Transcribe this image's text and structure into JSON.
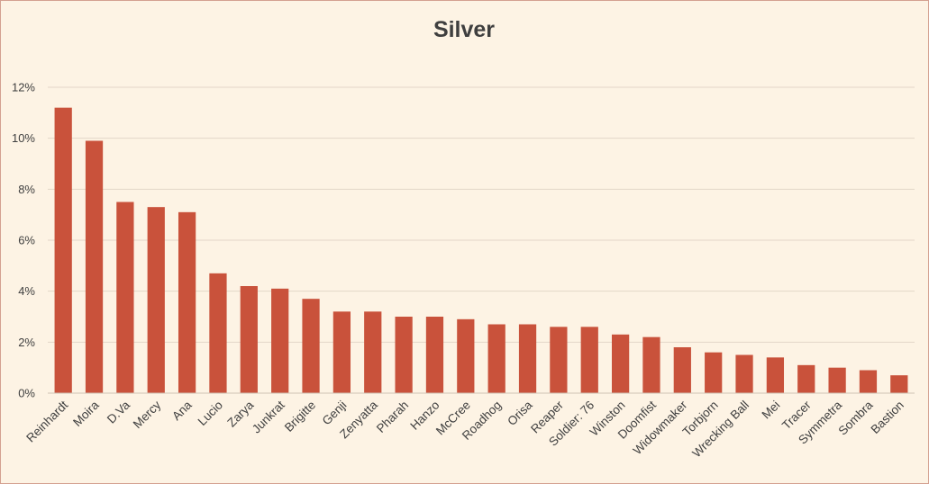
{
  "chart_data": {
    "type": "bar",
    "title": "Silver",
    "xlabel": "",
    "ylabel": "",
    "categories": [
      "Reinhardt",
      "Moira",
      "D.Va",
      "Mercy",
      "Ana",
      "Lucio",
      "Zarya",
      "Junkrat",
      "Brigitte",
      "Genji",
      "Zenyatta",
      "Pharah",
      "Hanzo",
      "McCree",
      "Roadhog",
      "Orisa",
      "Reaper",
      "Soldier: 76",
      "Winston",
      "Doomfist",
      "Widowmaker",
      "Torbjorn",
      "Wrecking Ball",
      "Mei",
      "Tracer",
      "Symmetra",
      "Sombra",
      "Bastion"
    ],
    "values": [
      11.2,
      9.9,
      7.5,
      7.3,
      7.1,
      4.7,
      4.2,
      4.1,
      3.7,
      3.2,
      3.2,
      3.0,
      3.0,
      2.9,
      2.7,
      2.7,
      2.6,
      2.6,
      2.3,
      2.2,
      1.8,
      1.6,
      1.5,
      1.4,
      1.1,
      1.0,
      0.9,
      0.7
    ],
    "yticks": [
      "0%",
      "2%",
      "4%",
      "6%",
      "8%",
      "10%",
      "12%"
    ],
    "ylim": [
      0,
      12
    ],
    "grid": true,
    "legend": "none",
    "bar_color": "#c9523b"
  }
}
